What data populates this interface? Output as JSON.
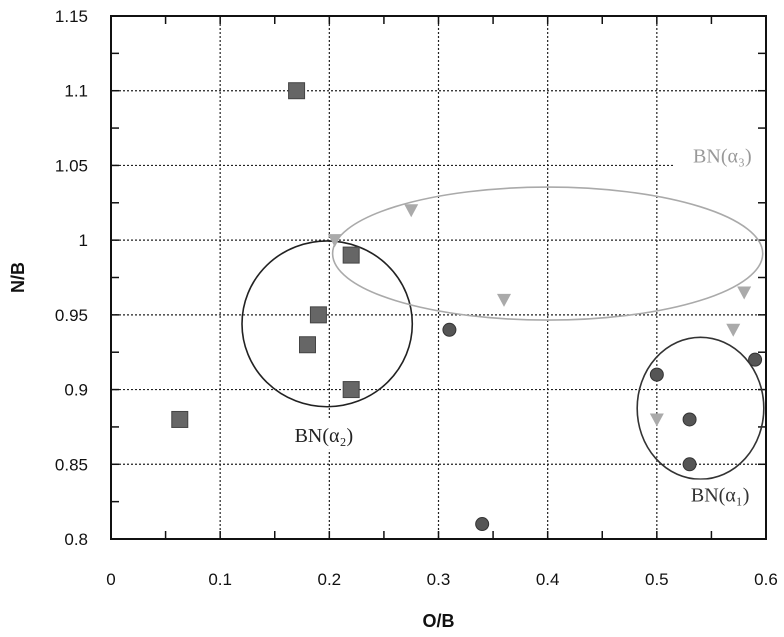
{
  "chart_data": {
    "type": "scatter",
    "xlabel": "O/B",
    "ylabel": "N/B",
    "xlim": [
      0,
      0.6
    ],
    "ylim": [
      0.8,
      1.15
    ],
    "x_ticks": [
      "0",
      "0.1",
      "0.2",
      "0.3",
      "0.4",
      "0.5",
      "0.6"
    ],
    "y_ticks": [
      "0.8",
      "0.85",
      "0.9",
      "0.95",
      "1",
      "1.05",
      "1.1",
      "1.15"
    ],
    "grid": true,
    "series": [
      {
        "marker": "square",
        "color": "#666666",
        "points": [
          [
            0.063,
            0.88
          ],
          [
            0.17,
            1.1
          ],
          [
            0.18,
            0.93
          ],
          [
            0.19,
            0.95
          ],
          [
            0.22,
            0.99
          ],
          [
            0.22,
            0.9
          ]
        ]
      },
      {
        "marker": "circle",
        "color": "#555555",
        "points": [
          [
            0.31,
            0.94
          ],
          [
            0.34,
            0.81
          ],
          [
            0.5,
            0.91
          ],
          [
            0.53,
            0.88
          ],
          [
            0.53,
            0.85
          ],
          [
            0.59,
            0.92
          ]
        ]
      },
      {
        "marker": "triangle-down",
        "color": "#aaaaaa",
        "points": [
          [
            0.205,
            1.0
          ],
          [
            0.275,
            1.02
          ],
          [
            0.36,
            0.96
          ],
          [
            0.5,
            0.88
          ],
          [
            0.57,
            0.94
          ],
          [
            0.58,
            0.965
          ]
        ]
      }
    ],
    "annotations": [
      {
        "text": "BN(α₂)",
        "x": 0.195,
        "y": 0.865,
        "color": "#222222"
      },
      {
        "text": "BN(α₃)",
        "x": 0.56,
        "y": 1.052,
        "color": "#999999"
      },
      {
        "text": "BN(α₁)",
        "x": 0.558,
        "y": 0.825,
        "color": "#333333"
      }
    ],
    "groupings": [
      {
        "shape": "ellipse",
        "cx": 0.54,
        "cy": 0.8875,
        "rx": 0.058,
        "ry": 0.0475,
        "color": "#333333"
      },
      {
        "shape": "ellipse",
        "cx": 0.198,
        "cy": 0.944,
        "rx": 0.078,
        "ry": 0.0555,
        "color": "#222222"
      },
      {
        "shape": "ellipse",
        "cx": 0.4,
        "cy": 0.991,
        "rx": 0.197,
        "ry": 0.0445,
        "color": "#aaaaaa"
      }
    ]
  }
}
